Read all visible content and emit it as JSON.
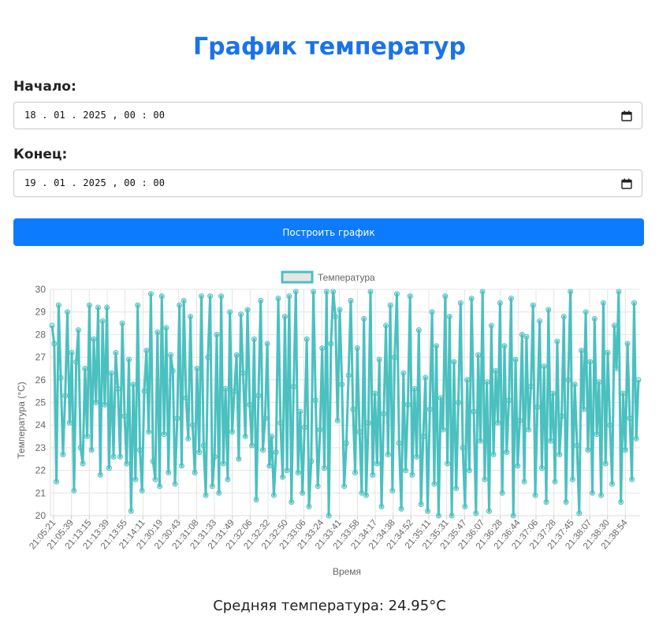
{
  "page": {
    "title": "График температур"
  },
  "form": {
    "start_label": "Начало:",
    "start_value": "18 . 01 . 2025 ,  00 : 00",
    "end_label": "Конец:",
    "end_value": "19 . 01 . 2025 ,  00 : 00",
    "submit_label": "Построить график"
  },
  "chart_data": {
    "type": "line",
    "title": "",
    "xlabel": "Время",
    "ylabel": "Температура (°C)",
    "ylim": [
      20,
      30
    ],
    "y_ticks": [
      20,
      21,
      22,
      23,
      24,
      25,
      26,
      27,
      28,
      29,
      30
    ],
    "grid": true,
    "legend": "top-center",
    "color": "#4bc0c0",
    "x_tick_labels": [
      "21:05:21",
      "21:05:39",
      "21:13:15",
      "21:13:39",
      "21:13:55",
      "21:14:11",
      "21:30:19",
      "21:30:43",
      "21:31:08",
      "21:31:33",
      "21:31:49",
      "21:32:06",
      "21:32:32",
      "21:32:50",
      "21:33:06",
      "21:33:24",
      "21:33:41",
      "21:33:58",
      "21:34:17",
      "21:34:38",
      "21:34:52",
      "21:35:11",
      "21:35:31",
      "21:35:47",
      "21:36:07",
      "21:36:28",
      "21:36:44",
      "21:37:06",
      "21:37:28",
      "21:37:45",
      "21:38:07",
      "21:38:30",
      "21:38:54"
    ],
    "series": [
      {
        "name": "Температура",
        "values": [
          28.4,
          27.6,
          21.5,
          29.3,
          26.1,
          22.7,
          25.3,
          29.0,
          24.1,
          27.2,
          21.1,
          26.8,
          28.2,
          23.0,
          22.3,
          26.5,
          23.5,
          29.3,
          22.9,
          27.8,
          25.0,
          29.2,
          21.8,
          28.6,
          24.9,
          29.2,
          22.1,
          26.3,
          22.6,
          27.2,
          25.6,
          22.6,
          28.5,
          24.4,
          22.3,
          26.9,
          20.2,
          25.8,
          21.6,
          29.3,
          22.9,
          21.1,
          25.5,
          27.3,
          23.7,
          29.8,
          22.4,
          21.6,
          28.1,
          21.3,
          29.7,
          23.6,
          28.3,
          21.9,
          27.1,
          26.4,
          21.4,
          24.3,
          29.3,
          22.2,
          29.5,
          25.2,
          23.4,
          28.8,
          24.0,
          21.9,
          26.5,
          22.8,
          29.7,
          23.1,
          20.9,
          27.0,
          29.7,
          21.3,
          22.6,
          28.0,
          21.0,
          29.7,
          22.3,
          25.6,
          21.6,
          29.0,
          23.7,
          25.5,
          27.1,
          22.5,
          28.9,
          26.3,
          23.5,
          29.1,
          24.9,
          23.1,
          27.8,
          20.7,
          25.3,
          29.5,
          22.9,
          24.3,
          27.6,
          22.2,
          23.5,
          20.9,
          22.8,
          29.6,
          24.1,
          21.7,
          28.8,
          22.0,
          29.7,
          20.6,
          25.7,
          29.9,
          21.9,
          24.6,
          21.0,
          23.9,
          27.8,
          20.4,
          22.4,
          29.9,
          25.1,
          21.3,
          23.8,
          27.4,
          22.1,
          29.9,
          20.0,
          27.6,
          29.9,
          28.8,
          24.2,
          29.1,
          25.8,
          21.3,
          23.2,
          26.2,
          29.5,
          24.7,
          21.9,
          27.4,
          23.7,
          21.0,
          28.7,
          20.9,
          24.1,
          29.9,
          21.8,
          25.4,
          22.3,
          26.9,
          20.4,
          24.5,
          28.4,
          22.7,
          29.3,
          21.1,
          27.0,
          29.8,
          23.2,
          20.3,
          26.3,
          22.0,
          24.9,
          29.7,
          21.8,
          25.6,
          22.6,
          28.2,
          20.5,
          23.5,
          26.1,
          20.2,
          24.7,
          29.0,
          21.4,
          27.5,
          20.0,
          25.2,
          23.8,
          29.7,
          22.3,
          28.8,
          20.0,
          26.8,
          21.2,
          25.0,
          29.4,
          23.0,
          20.4,
          26.0,
          22.0,
          29.6,
          24.6,
          20.1,
          27.1,
          23.3,
          29.9,
          21.6,
          25.9,
          20.2,
          28.4,
          22.7,
          26.4,
          24.1,
          29.4,
          21.0,
          27.5,
          22.8,
          25.1,
          29.6,
          20.0,
          26.9,
          22.2,
          24.2,
          28.0,
          21.5,
          27.9,
          23.8,
          25.7,
          29.3,
          20.9,
          24.8,
          28.6,
          22.1,
          26.6,
          20.6,
          29.1,
          23.3,
          25.4,
          21.5,
          27.7,
          22.7,
          24.4,
          28.8,
          20.6,
          26.0,
          29.9,
          21.6,
          25.8,
          23.1,
          20.1,
          27.3,
          24.7,
          29.0,
          22.9,
          26.8,
          21.0,
          28.7,
          23.6,
          25.9,
          20.9,
          29.4,
          22.3,
          27.2,
          24.0,
          21.4,
          28.4,
          26.5,
          29.9,
          20.6,
          25.4,
          22.9,
          27.6,
          24.3,
          21.6,
          29.4,
          23.4,
          26.0
        ]
      }
    ]
  },
  "stats": {
    "average_text": "Средняя температура: 24.95°C"
  }
}
